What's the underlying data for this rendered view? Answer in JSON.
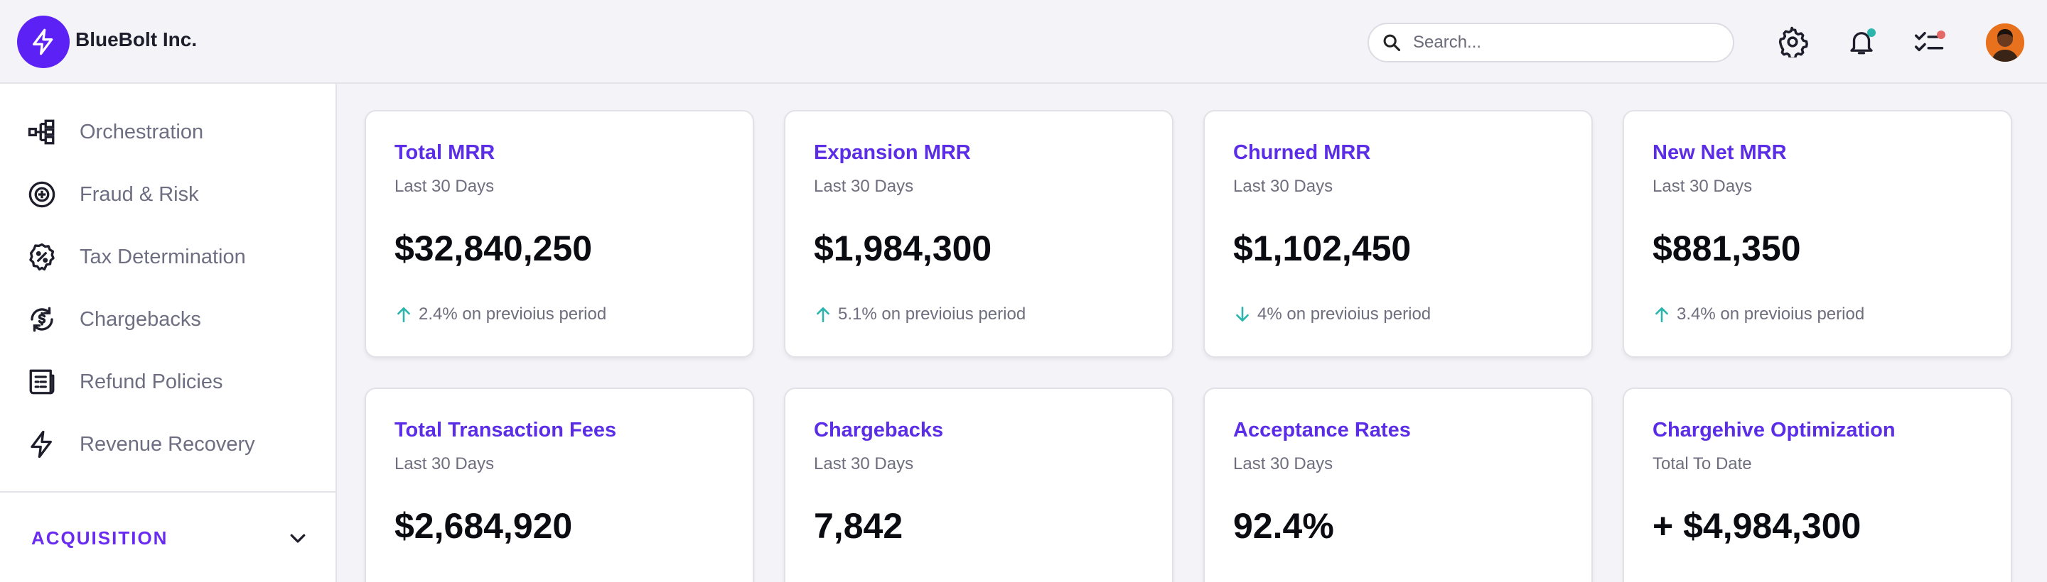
{
  "header": {
    "brand": "BlueBolt Inc.",
    "search": {
      "placeholder": "Search...",
      "value": ""
    },
    "icons": [
      "settings-gear-icon",
      "notifications-bell-icon",
      "tasks-checklist-icon"
    ],
    "notification_dot_color": "#2bb5ad",
    "tasks_dot_color": "#e46868",
    "accent": "#5b21f5"
  },
  "sidebar": {
    "items": [
      {
        "label": "Orchestration",
        "icon": "orchestration-icon"
      },
      {
        "label": "Fraud & Risk",
        "icon": "fraud-risk-icon"
      },
      {
        "label": "Tax Determination",
        "icon": "tax-badge-icon"
      },
      {
        "label": "Chargebacks",
        "icon": "chargeback-refresh-icon"
      },
      {
        "label": "Refund Policies",
        "icon": "refund-policy-icon"
      },
      {
        "label": "Revenue Recovery",
        "icon": "lightning-icon"
      }
    ],
    "section": {
      "label": "ACQUISITION",
      "expanded": false
    }
  },
  "cards": [
    {
      "title": "Total MRR",
      "subtitle": "Last 30 Days",
      "value": "$32,840,250",
      "delta": "2.4% on previoius period",
      "direction": "up"
    },
    {
      "title": "Expansion MRR",
      "subtitle": "Last 30 Days",
      "value": "$1,984,300",
      "delta": "5.1% on previoius period",
      "direction": "up"
    },
    {
      "title": "Churned MRR",
      "subtitle": "Last 30 Days",
      "value": "$1,102,450",
      "delta": "4% on previoius period",
      "direction": "down"
    },
    {
      "title": "New Net MRR",
      "subtitle": "Last 30 Days",
      "value": "$881,350",
      "delta": "3.4% on previoius period",
      "direction": "up"
    },
    {
      "title": "Total Transaction Fees",
      "subtitle": "Last 30 Days",
      "value": "$2,684,920"
    },
    {
      "title": "Chargebacks",
      "subtitle": "Last 30 Days",
      "value": "7,842"
    },
    {
      "title": "Acceptance Rates",
      "subtitle": "Last 30 Days",
      "value": "92.4%"
    },
    {
      "title": "Chargehive Optimization",
      "subtitle": "Total To Date",
      "value": "+ $4,984,300"
    }
  ],
  "colors": {
    "title": "#5b2de6",
    "delta_arrow": "#2bb5ad"
  }
}
